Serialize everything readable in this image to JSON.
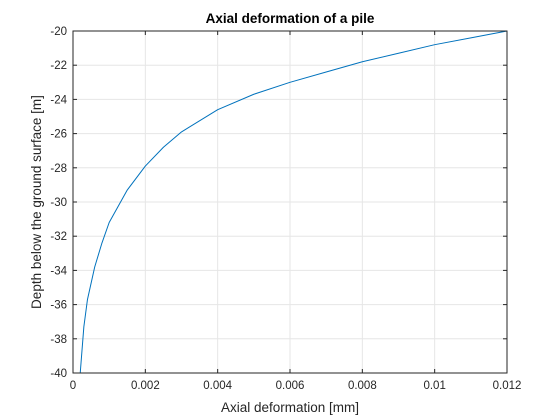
{
  "chart_data": {
    "type": "line",
    "title": "Axial deformation of a pile",
    "xlabel": "Axial deformation [mm]",
    "ylabel": "Depth below the ground surface [m]",
    "xlim": [
      0,
      0.012
    ],
    "ylim": [
      -40,
      -20
    ],
    "x_ticks": [
      0,
      0.002,
      0.004,
      0.006,
      0.008,
      0.01,
      0.012
    ],
    "x_tick_labels": [
      "0",
      "0.002",
      "0.004",
      "0.006",
      "0.008",
      "0.01",
      "0.012"
    ],
    "y_ticks": [
      -40,
      -38,
      -36,
      -34,
      -32,
      -30,
      -28,
      -26,
      -24,
      -22,
      -20
    ],
    "y_tick_labels": [
      "-40",
      "-38",
      "-36",
      "-34",
      "-32",
      "-30",
      "-28",
      "-26",
      "-24",
      "-22",
      "-20"
    ],
    "grid": true,
    "line_color": "#0072bd",
    "series": [
      {
        "x": [
          0.0002,
          0.0003,
          0.0004,
          0.0006,
          0.0008,
          0.001,
          0.0015,
          0.002,
          0.0025,
          0.003,
          0.004,
          0.005,
          0.006,
          0.007,
          0.008,
          0.009,
          0.01,
          0.011,
          0.012
        ],
        "y": [
          -40,
          -37.3,
          -35.7,
          -33.8,
          -32.4,
          -31.2,
          -29.3,
          -27.9,
          -26.8,
          -25.9,
          -24.6,
          -23.7,
          -23.0,
          -22.4,
          -21.8,
          -21.3,
          -20.8,
          -20.4,
          -20.0
        ]
      }
    ]
  }
}
